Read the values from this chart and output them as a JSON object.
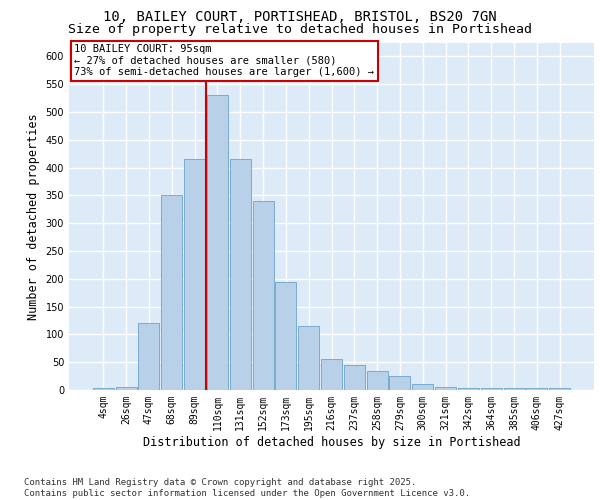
{
  "title_line1": "10, BAILEY COURT, PORTISHEAD, BRISTOL, BS20 7GN",
  "title_line2": "Size of property relative to detached houses in Portishead",
  "xlabel": "Distribution of detached houses by size in Portishead",
  "ylabel": "Number of detached properties",
  "bar_labels": [
    "4sqm",
    "26sqm",
    "47sqm",
    "68sqm",
    "89sqm",
    "110sqm",
    "131sqm",
    "152sqm",
    "173sqm",
    "195sqm",
    "216sqm",
    "237sqm",
    "258sqm",
    "279sqm",
    "300sqm",
    "321sqm",
    "342sqm",
    "364sqm",
    "385sqm",
    "406sqm",
    "427sqm"
  ],
  "bar_values": [
    3,
    5,
    120,
    350,
    415,
    530,
    415,
    340,
    195,
    115,
    55,
    45,
    35,
    25,
    10,
    5,
    3,
    3,
    3,
    3,
    3
  ],
  "bar_color": "#b8d0e8",
  "bar_edge_color": "#6ba3cc",
  "bg_color": "#ddeaf7",
  "grid_color": "#ffffff",
  "annotation_text": "10 BAILEY COURT: 95sqm\n← 27% of detached houses are smaller (580)\n73% of semi-detached houses are larger (1,600) →",
  "annotation_box_color": "#ffffff",
  "annotation_box_edge": "#cc0000",
  "vline_x": 4.5,
  "vline_color": "#cc0000",
  "ylim": [
    0,
    625
  ],
  "yticks": [
    0,
    50,
    100,
    150,
    200,
    250,
    300,
    350,
    400,
    450,
    500,
    550,
    600
  ],
  "footnote": "Contains HM Land Registry data © Crown copyright and database right 2025.\nContains public sector information licensed under the Open Government Licence v3.0.",
  "title_fontsize": 10,
  "subtitle_fontsize": 9.5,
  "axis_label_fontsize": 8.5,
  "tick_fontsize": 7,
  "annot_fontsize": 7.5,
  "footnote_fontsize": 6.5
}
